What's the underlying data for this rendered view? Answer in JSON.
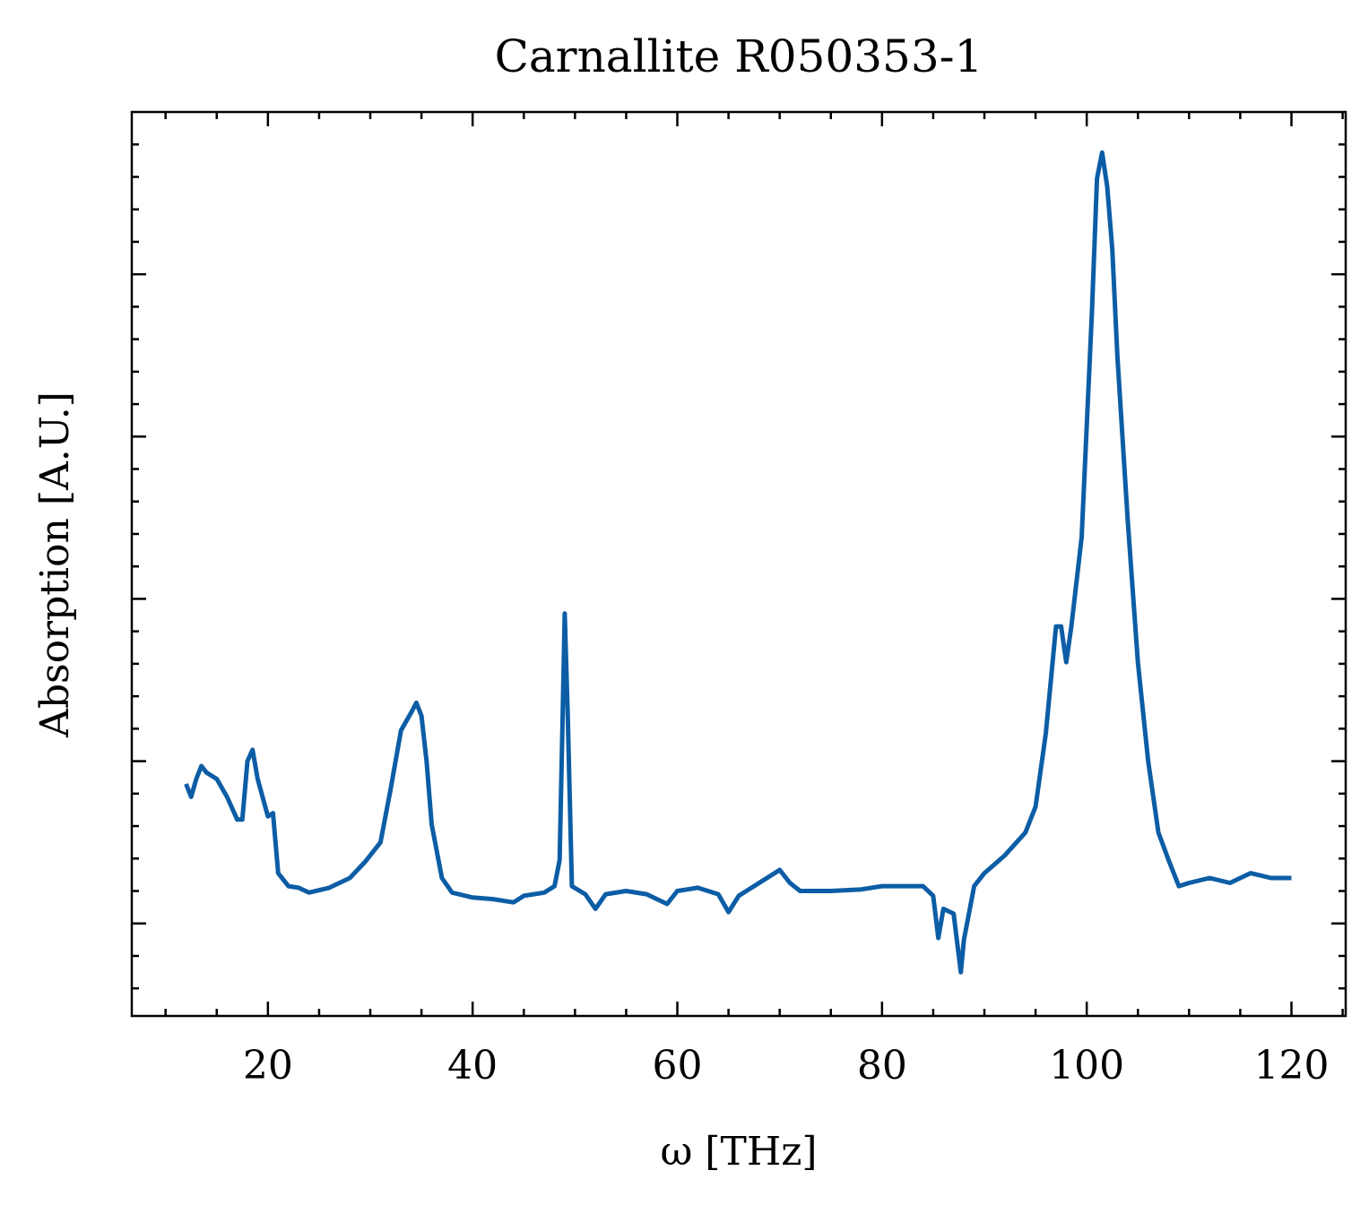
{
  "chart_data": {
    "type": "line",
    "title": "Carnallite R050353-1",
    "x_label": "ω [THz]",
    "y_label": "Absorption [A.U.]",
    "x": [
      12,
      12.5,
      13,
      13.5,
      14,
      15,
      16,
      17,
      17.5,
      18,
      18.5,
      19,
      20,
      20.5,
      21,
      22,
      23,
      24,
      26,
      28,
      29.5,
      30,
      31,
      32,
      33,
      34,
      34.5,
      35,
      35.5,
      36,
      37,
      38,
      40,
      42,
      44,
      45,
      47,
      48,
      48.5,
      48.8,
      49,
      49.3,
      49.7,
      51,
      52,
      53,
      55,
      57,
      59,
      60,
      62,
      64,
      65,
      66,
      68,
      70,
      71,
      72,
      75,
      78,
      80,
      82,
      84,
      85,
      85.5,
      86,
      87,
      87.7,
      88,
      89,
      90,
      92,
      94,
      95,
      96,
      97,
      97.5,
      98,
      98.5,
      99.5,
      100.5,
      101,
      101.5,
      102,
      102.5,
      103,
      104,
      105,
      106,
      107,
      108,
      109,
      110,
      112,
      114,
      116,
      118,
      120
    ],
    "series": [
      {
        "color": "#0c5da5",
        "values": [
          0.86,
          0.78,
          0.89,
          0.97,
          0.93,
          0.89,
          0.78,
          0.64,
          0.64,
          1.0,
          1.07,
          0.89,
          0.66,
          0.68,
          0.31,
          0.23,
          0.22,
          0.19,
          0.22,
          0.28,
          0.38,
          0.42,
          0.5,
          0.83,
          1.19,
          1.3,
          1.36,
          1.28,
          1.0,
          0.61,
          0.28,
          0.19,
          0.16,
          0.15,
          0.13,
          0.17,
          0.19,
          0.23,
          0.39,
          1.28,
          1.91,
          1.28,
          0.23,
          0.18,
          0.09,
          0.18,
          0.2,
          0.18,
          0.12,
          0.2,
          0.22,
          0.18,
          0.07,
          0.17,
          0.25,
          0.33,
          0.25,
          0.2,
          0.2,
          0.21,
          0.23,
          0.23,
          0.23,
          0.17,
          -0.09,
          0.09,
          0.06,
          -0.3,
          -0.1,
          0.23,
          0.31,
          0.42,
          0.56,
          0.72,
          1.17,
          1.83,
          1.83,
          1.61,
          1.83,
          2.38,
          3.76,
          4.59,
          4.75,
          4.54,
          4.15,
          3.49,
          2.49,
          1.61,
          1.0,
          0.56,
          0.39,
          0.23,
          0.25,
          0.28,
          0.25,
          0.31,
          0.28,
          0.28
        ]
      }
    ],
    "xlim": [
      6.7,
      125.3
    ],
    "xticks": [
      20,
      40,
      60,
      80,
      100,
      120
    ],
    "ylim": [
      -0.57,
      5.0
    ],
    "yticks": [
      0,
      1,
      2,
      3,
      4
    ],
    "ytick_labels": false,
    "xminor": 4,
    "yminor": 5,
    "grid": false
  }
}
